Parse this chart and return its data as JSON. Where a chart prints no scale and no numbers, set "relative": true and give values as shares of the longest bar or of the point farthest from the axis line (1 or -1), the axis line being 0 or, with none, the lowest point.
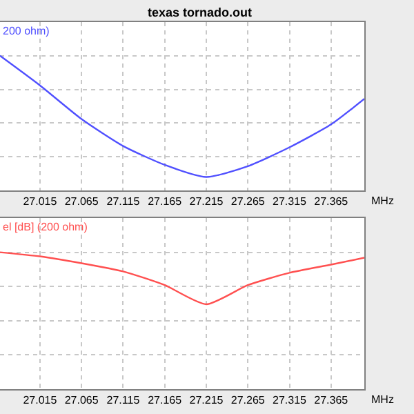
{
  "chart_data": [
    {
      "type": "line",
      "title": "texas tornado.out",
      "ylabel": "200 ohm)",
      "xlabel": "MHz",
      "relative": true,
      "grid": true,
      "x": [
        26.967,
        27.015,
        27.065,
        27.115,
        27.165,
        27.215,
        27.265,
        27.315,
        27.365,
        27.405
      ],
      "series": [
        {
          "color": "#5050ff",
          "values": [
            1,
            0.78,
            0.53,
            0.33,
            0.19,
            0.1,
            0.18,
            0.32,
            0.49,
            0.68
          ]
        }
      ],
      "xlim": [
        26.967,
        27.405
      ],
      "xticks": [
        27.015,
        27.065,
        27.115,
        27.165,
        27.215,
        27.265,
        27.315,
        27.365
      ]
    },
    {
      "type": "line",
      "ylabel": "el [dB] (200 ohm)",
      "xlabel": "MHz",
      "relative": true,
      "grid": true,
      "x": [
        26.967,
        27.015,
        27.065,
        27.115,
        27.165,
        27.215,
        27.265,
        27.315,
        27.365,
        27.405
      ],
      "series": [
        {
          "color": "#ff5050",
          "values": [
            1,
            0.97,
            0.92,
            0.86,
            0.76,
            0.62,
            0.76,
            0.85,
            0.91,
            0.96
          ]
        }
      ],
      "xlim": [
        26.967,
        27.405
      ],
      "xticks": [
        27.015,
        27.065,
        27.115,
        27.165,
        27.215,
        27.265,
        27.315,
        27.365
      ]
    }
  ]
}
